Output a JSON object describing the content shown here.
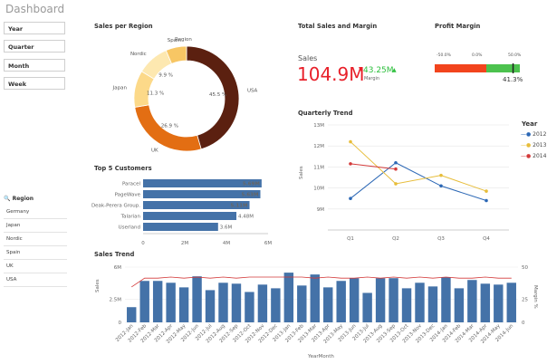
{
  "app": {
    "title": "Dashboard"
  },
  "filters": [
    {
      "label": "Year"
    },
    {
      "label": "Quarter"
    },
    {
      "label": "Month"
    },
    {
      "label": "Week"
    }
  ],
  "region_filter": {
    "title": "Region",
    "items": [
      "Germany",
      "Japan",
      "Nordic",
      "Spain",
      "UK",
      "USA"
    ]
  },
  "colors": {
    "usa": "#5b2010",
    "uk": "#e36e13",
    "japan": "#fcd989",
    "nordic": "#fde8b0",
    "spain": "#f7c664",
    "bar": "#4472a8",
    "margin_line": "#d33a3a",
    "red": "#e8202a",
    "green": "#2cbf3c"
  },
  "sales_per_region": {
    "title": "Sales per Region",
    "legend_title": "Region",
    "chart_data": {
      "type": "pie",
      "donut": true,
      "labels": [
        "USA",
        "UK",
        "Japan",
        "Nordic",
        "Spain"
      ],
      "values": [
        45.5,
        26.9,
        11.3,
        9.9,
        6.4
      ],
      "value_labels": [
        "45.5 %",
        "26.9 %",
        "11.3 %",
        "9.9 %",
        ""
      ]
    }
  },
  "total_sales": {
    "title": "Total Sales and Margin",
    "sales_label": "Sales",
    "sales_value": "104.9M",
    "margin_value": "43.25M",
    "margin_label": "Margin"
  },
  "profit_margin": {
    "title": "Profit Margin",
    "scale_labels": [
      "-50.0%",
      "0.0%",
      "50.0%"
    ],
    "value_label": "41.3%",
    "value": 41.3
  },
  "top_customers": {
    "title": "Top 5 Customers",
    "chart_data": {
      "type": "bar",
      "orientation": "horizontal",
      "categories": [
        "Paracel",
        "PageWave",
        "Deak-Perera Group.",
        "Talarian",
        "Userland"
      ],
      "values": [
        5.69,
        5.63,
        5.11,
        4.48,
        3.6
      ],
      "value_labels": [
        "5.69M",
        "5.63M",
        "5.11M",
        "4.48M",
        "3.6M"
      ],
      "xlim": [
        0,
        6
      ],
      "x_ticks": [
        "0",
        "2M",
        "4M",
        "6M"
      ]
    }
  },
  "quarterly_trend": {
    "title": "Quarterly Trend",
    "legend_title": "Year",
    "chart_data": {
      "type": "line",
      "categories": [
        "Q1",
        "Q2",
        "Q3",
        "Q4"
      ],
      "ylabel": "Sales",
      "ylim": [
        8,
        13
      ],
      "y_ticks": [
        "13M",
        "12M",
        "11M",
        "10M",
        "9M"
      ],
      "series": [
        {
          "name": "2012",
          "color": "#2b67b5",
          "values": [
            9.5,
            11.2,
            10.1,
            9.4
          ]
        },
        {
          "name": "2013",
          "color": "#e7bd3a",
          "values": [
            12.2,
            10.2,
            10.6,
            9.85
          ]
        },
        {
          "name": "2014",
          "color": "#d33a3a",
          "values": [
            11.15,
            10.9,
            null,
            null
          ]
        }
      ]
    }
  },
  "sales_trend": {
    "title": "Sales Trend",
    "chart_data": {
      "type": "bar",
      "xlabel": "YearMonth",
      "ylabel": "Sales",
      "y2label": "Margin %",
      "ylim": [
        0,
        6
      ],
      "y_ticks": [
        "6M",
        "2.5M",
        "0"
      ],
      "y2_ticks": [
        "50",
        "25",
        "0"
      ],
      "categories": [
        "2012-Jan",
        "2012-Feb",
        "2012-Mar",
        "2012-Apr",
        "2012-May",
        "2012-Jun",
        "2012-Jul",
        "2012-Aug",
        "2012-Sep",
        "2012-Oct",
        "2012-Nov",
        "2012-Dec",
        "2013-Jan",
        "2013-Feb",
        "2013-Mar",
        "2013-Apr",
        "2013-May",
        "2013-Jun",
        "2013-Jul",
        "2013-Aug",
        "2013-Sep",
        "2013-Oct",
        "2013-Nov",
        "2013-Dec",
        "2014-Jan",
        "2014-Feb",
        "2014-Mar",
        "2014-Apr",
        "2014-May",
        "2014-Jun"
      ],
      "x_labels": [
        "2012-Jan",
        "2012-Feb",
        "2012-Mar",
        "2012-Apr",
        "2012-May",
        "2012-Jun",
        "2012-Jul",
        "2012-Aug",
        "2012-Sep",
        "2012-Oct",
        "2012-Nov",
        "2012-Dec",
        "2013-Jan",
        "2013-Feb",
        "2013-Mar",
        "2013-Apr",
        "2013-May",
        "2013-Jun",
        "2013-Jul",
        "2013-Aug",
        "2013-Sep",
        "2013-Oct",
        "2013-Nov",
        "2013-Dec",
        "2014-Jan",
        "2014-Feb",
        "2014-Mar",
        "2014-Apr",
        "2014-May",
        "2014-Jun"
      ],
      "series": [
        {
          "name": "Sales",
          "values": [
            1.65,
            4.5,
            4.5,
            4.3,
            3.8,
            5.0,
            3.5,
            4.3,
            4.2,
            3.3,
            4.1,
            3.7,
            5.4,
            4.0,
            5.2,
            3.8,
            4.5,
            4.8,
            3.2,
            4.8,
            4.8,
            3.7,
            4.3,
            3.9,
            4.9,
            3.7,
            4.6,
            4.2,
            4.1,
            4.3
          ]
        },
        {
          "name": "Margin %",
          "values": [
            32,
            40,
            40,
            41,
            40,
            41,
            40,
            41,
            40,
            41,
            41,
            41,
            41,
            41,
            40,
            41,
            40,
            40,
            41,
            40,
            41,
            40,
            41,
            40,
            41,
            40,
            40,
            41,
            40,
            40
          ]
        }
      ]
    }
  }
}
